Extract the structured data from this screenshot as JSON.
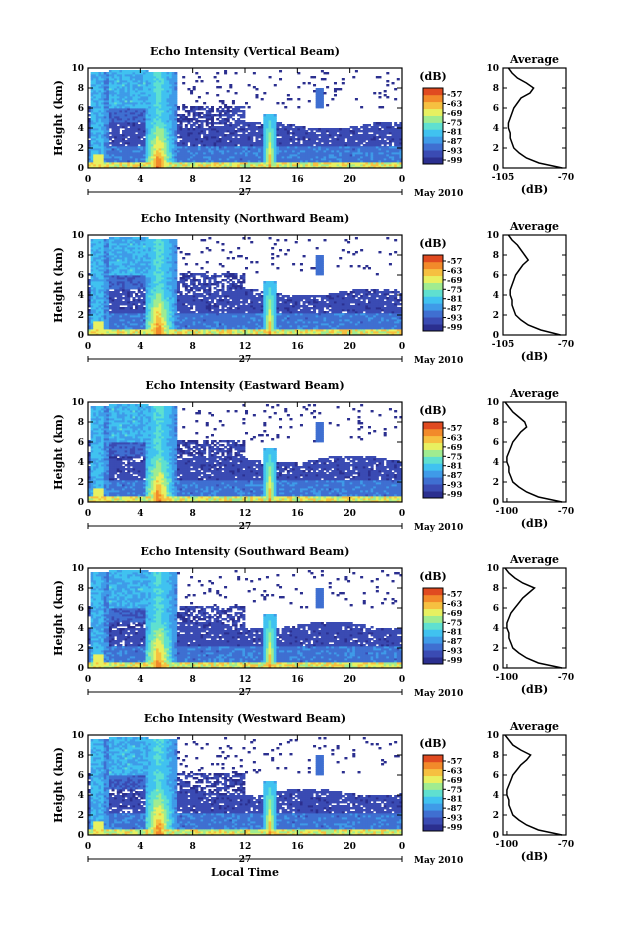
{
  "chart_data": [
    {
      "type": "heatmap",
      "title": "Echo Intensity (Vertical Beam)",
      "ylabel": "Height (km)",
      "ylim": [
        0,
        10
      ],
      "y_ticks": [
        "0",
        "2",
        "4",
        "6",
        "8",
        "10"
      ],
      "x_ticks": [
        "0",
        "4",
        "8",
        "12",
        "16",
        "20",
        "0"
      ],
      "xlim": [
        0,
        24
      ],
      "day_label": "27",
      "month_label": "May 2010",
      "colorbar_unit": "(dB)",
      "colorbar_ticks": [
        "-57",
        "-63",
        "-69",
        "-75",
        "-81",
        "-87",
        "-93",
        "-99"
      ],
      "average": {
        "title": "Average",
        "xlabel": "(dB)",
        "x_ticks": [
          "-105",
          "-70"
        ],
        "xlim": [
          -105,
          -70
        ],
        "height": [
          0,
          0.5,
          1,
          1.5,
          2,
          2.5,
          3,
          3.5,
          4,
          4.5,
          5,
          5.5,
          6,
          6.5,
          7,
          7.5,
          8,
          8.5,
          9,
          9.5,
          10
        ],
        "value": [
          -72,
          -85,
          -92,
          -96,
          -99,
          -100,
          -101,
          -101,
          -102,
          -102,
          -101,
          -100,
          -99,
          -97,
          -95,
          -90,
          -88,
          -92,
          -97,
          -100,
          -102
        ]
      }
    },
    {
      "type": "heatmap",
      "title": "Echo Intensity (Northward Beam)",
      "ylabel": "Height (km)",
      "ylim": [
        0,
        10
      ],
      "y_ticks": [
        "0",
        "2",
        "4",
        "6",
        "8",
        "10"
      ],
      "x_ticks": [
        "0",
        "4",
        "8",
        "12",
        "16",
        "20",
        "0"
      ],
      "xlim": [
        0,
        24
      ],
      "day_label": "27",
      "month_label": "May 2010",
      "colorbar_unit": "(dB)",
      "colorbar_ticks": [
        "-57",
        "-63",
        "-69",
        "-75",
        "-81",
        "-87",
        "-93",
        "-99"
      ],
      "average": {
        "title": "Average",
        "xlabel": "(dB)",
        "x_ticks": [
          "-105",
          "-70"
        ],
        "xlim": [
          -105,
          -70
        ],
        "height": [
          0,
          0.5,
          1,
          1.5,
          2,
          2.5,
          3,
          3.5,
          4,
          4.5,
          5,
          5.5,
          6,
          6.5,
          7,
          7.5,
          8,
          8.5,
          9,
          9.5,
          10
        ],
        "value": [
          -73,
          -84,
          -91,
          -95,
          -98,
          -99,
          -100,
          -100,
          -101,
          -101,
          -100,
          -99,
          -98,
          -96,
          -94,
          -91,
          -93,
          -95,
          -97,
          -100,
          -102
        ]
      }
    },
    {
      "type": "heatmap",
      "title": "Echo Intensity (Eastward Beam)",
      "ylabel": "Height (km)",
      "ylim": [
        0,
        10
      ],
      "y_ticks": [
        "0",
        "2",
        "4",
        "6",
        "8",
        "10"
      ],
      "x_ticks": [
        "0",
        "4",
        "8",
        "12",
        "16",
        "20",
        "0"
      ],
      "xlim": [
        0,
        24
      ],
      "day_label": "27",
      "month_label": "May 2010",
      "colorbar_unit": "(dB)",
      "colorbar_ticks": [
        "-57",
        "-63",
        "-69",
        "-75",
        "-81",
        "-87",
        "-93",
        "-99"
      ],
      "average": {
        "title": "Average",
        "xlabel": "(dB)",
        "x_ticks": [
          "-100",
          "-70"
        ],
        "xlim": [
          -102,
          -70
        ],
        "height": [
          0,
          0.5,
          1,
          1.5,
          2,
          2.5,
          3,
          3.5,
          4,
          4.5,
          5,
          5.5,
          6,
          6.5,
          7,
          7.5,
          8,
          8.5,
          9,
          9.5,
          10
        ],
        "value": [
          -72,
          -84,
          -90,
          -94,
          -97,
          -98,
          -99,
          -99,
          -100,
          -100,
          -99,
          -98,
          -97,
          -95,
          -93,
          -90,
          -91,
          -94,
          -97,
          -99,
          -101
        ]
      }
    },
    {
      "type": "heatmap",
      "title": "Echo Intensity (Southward Beam)",
      "ylabel": "Height (km)",
      "ylim": [
        0,
        10
      ],
      "y_ticks": [
        "0",
        "2",
        "4",
        "6",
        "8",
        "10"
      ],
      "x_ticks": [
        "0",
        "4",
        "8",
        "12",
        "16",
        "20",
        "0"
      ],
      "xlim": [
        0,
        24
      ],
      "day_label": "27",
      "month_label": "May 2010",
      "colorbar_unit": "(dB)",
      "colorbar_ticks": [
        "-57",
        "-63",
        "-69",
        "-75",
        "-81",
        "-87",
        "-93",
        "-99"
      ],
      "average": {
        "title": "Average",
        "xlabel": "(dB)",
        "x_ticks": [
          "-100",
          "-70"
        ],
        "xlim": [
          -102,
          -70
        ],
        "height": [
          0,
          0.5,
          1,
          1.5,
          2,
          2.5,
          3,
          3.5,
          4,
          4.5,
          5,
          5.5,
          6,
          6.5,
          7,
          7.5,
          8,
          8.5,
          9,
          9.5,
          10
        ],
        "value": [
          -72,
          -84,
          -90,
          -94,
          -97,
          -98,
          -99,
          -99,
          -100,
          -100,
          -99,
          -98,
          -96,
          -94,
          -92,
          -89,
          -86,
          -92,
          -96,
          -99,
          -101
        ]
      }
    },
    {
      "type": "heatmap",
      "title": "Echo Intensity (Westward Beam)",
      "ylabel": "Height (km)",
      "ylim": [
        0,
        10
      ],
      "y_ticks": [
        "0",
        "2",
        "4",
        "6",
        "8",
        "10"
      ],
      "x_ticks": [
        "0",
        "4",
        "8",
        "12",
        "16",
        "20",
        "0"
      ],
      "xlim": [
        0,
        24
      ],
      "day_label": "27",
      "month_label": "May 2010",
      "xlabel": "Local Time",
      "colorbar_unit": "(dB)",
      "colorbar_ticks": [
        "-57",
        "-63",
        "-69",
        "-75",
        "-81",
        "-87",
        "-93",
        "-99"
      ],
      "average": {
        "title": "Average",
        "xlabel": "(dB)",
        "x_ticks": [
          "-100",
          "-70"
        ],
        "xlim": [
          -102,
          -70
        ],
        "height": [
          0,
          0.5,
          1,
          1.5,
          2,
          2.5,
          3,
          3.5,
          4,
          4.5,
          5,
          5.5,
          6,
          6.5,
          7,
          7.5,
          8,
          8.5,
          9,
          9.5,
          10
        ],
        "value": [
          -72,
          -84,
          -90,
          -94,
          -97,
          -98,
          -99,
          -99,
          -100,
          -100,
          -99,
          -98,
          -97,
          -95,
          -93,
          -90,
          -88,
          -93,
          -97,
          -99,
          -101
        ]
      }
    }
  ],
  "colormap": [
    "#2b2f8f",
    "#3a4bb3",
    "#3f6fd1",
    "#3f9be8",
    "#40c2f0",
    "#5fe0d0",
    "#a0ec90",
    "#e8f060",
    "#f6c040",
    "#f28a2a",
    "#e04a20"
  ]
}
